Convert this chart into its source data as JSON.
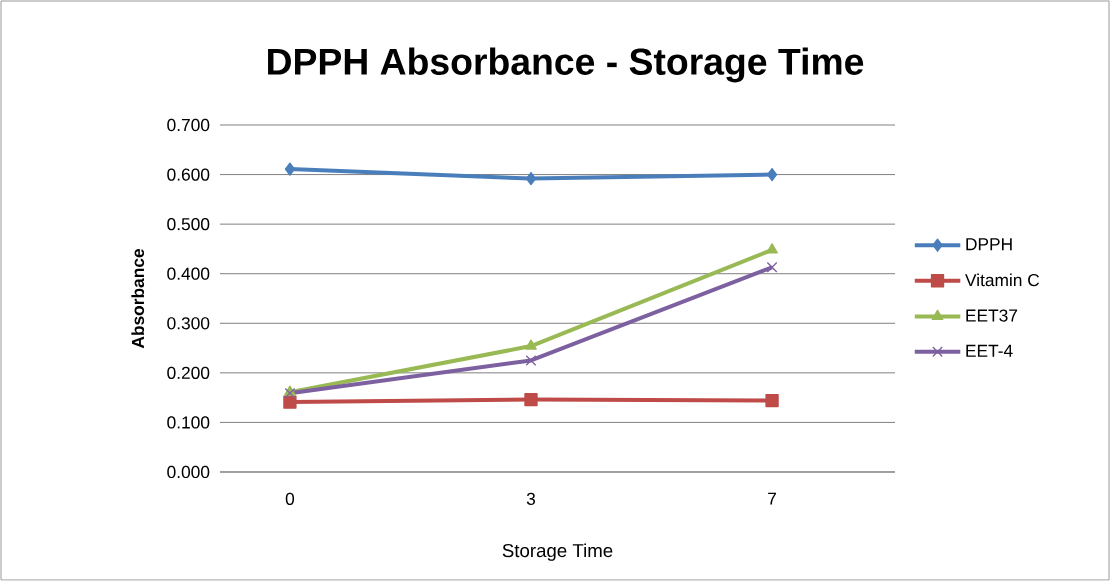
{
  "chart_data": {
    "type": "line",
    "title": "DPPH Absorbance  - Storage Time",
    "xlabel": "Storage Time",
    "ylabel": "Absorbance",
    "categories": [
      "0",
      "3",
      "7"
    ],
    "series": [
      {
        "name": "DPPH",
        "color": "#4a7ebb",
        "marker": "diamond",
        "values": [
          0.611,
          0.592,
          0.6
        ]
      },
      {
        "name": "Vitamin C",
        "color": "#be4b48",
        "marker": "square",
        "values": [
          0.141,
          0.146,
          0.144
        ]
      },
      {
        "name": "EET37",
        "color": "#98b954",
        "marker": "triangle",
        "values": [
          0.161,
          0.254,
          0.448
        ]
      },
      {
        "name": "EET-4",
        "color": "#7d60a0",
        "marker": "cross",
        "values": [
          0.159,
          0.225,
          0.413
        ]
      }
    ],
    "ylim": [
      0,
      0.7
    ],
    "yticks": [
      {
        "value": 0,
        "label": "0.000"
      },
      {
        "value": 0.1,
        "label": "0.100"
      },
      {
        "value": 0.2,
        "label": "0.200"
      },
      {
        "value": 0.3,
        "label": "0.300"
      },
      {
        "value": 0.4,
        "label": "0.400"
      },
      {
        "value": 0.5,
        "label": "0.500"
      },
      {
        "value": 0.6,
        "label": "0.600"
      },
      {
        "value": 0.7,
        "label": "0.700"
      }
    ],
    "grid": "y",
    "legend": "right"
  }
}
